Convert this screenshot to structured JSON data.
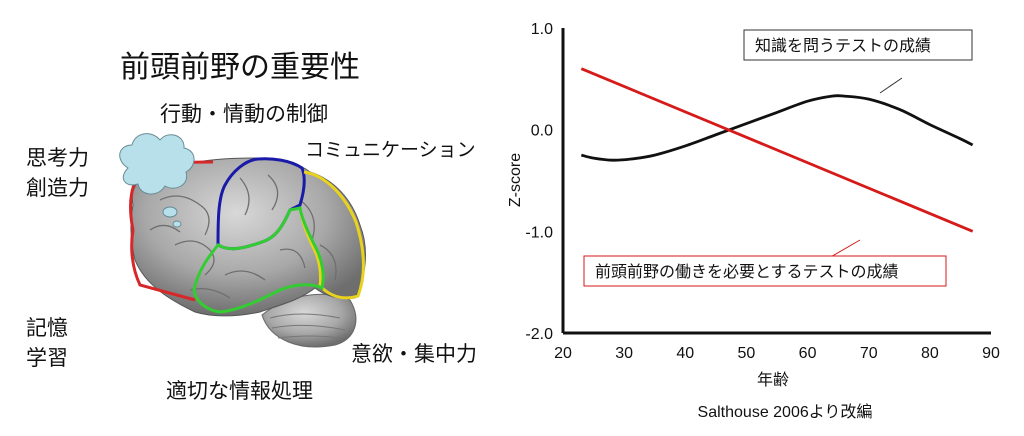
{
  "diagram": {
    "title": "前頭前野の重要性",
    "labels": {
      "behavior": "行動・情動の制御",
      "thinking": "思考力\n創造力",
      "communication": "コミュニケーション",
      "memory": "記憶\n学習",
      "motivation": "意欲・集中力",
      "processing": "適切な情報処理"
    },
    "region_colors": {
      "red": "#d62828",
      "blue": "#1a1aa8",
      "yellow": "#e8d21e",
      "green": "#33cc33"
    },
    "cloud_color": "#b8e0ea"
  },
  "chart_data": {
    "type": "line",
    "xlabel": "年齢",
    "ylabel": "Z-score",
    "xlim": [
      20,
      90
    ],
    "ylim": [
      -2.0,
      1.0
    ],
    "x_ticks": [
      20,
      30,
      40,
      50,
      60,
      70,
      80,
      90
    ],
    "y_ticks": [
      {
        "value": 1.0,
        "label": "1.0"
      },
      {
        "value": 0.0,
        "label": "0.0"
      },
      {
        "value": -1.0,
        "label": "-1.0"
      },
      {
        "value": -2.0,
        "label": "-2.0"
      }
    ],
    "grid": false,
    "series": [
      {
        "name": "知識を問うテストの成績",
        "color": "#111111",
        "x": [
          23,
          25,
          28,
          31,
          35,
          40,
          45,
          50,
          55,
          60,
          64,
          66,
          70,
          75,
          80,
          85,
          87
        ],
        "y": [
          -0.25,
          -0.28,
          -0.3,
          -0.29,
          -0.25,
          -0.16,
          -0.05,
          0.06,
          0.17,
          0.28,
          0.33,
          0.33,
          0.3,
          0.2,
          0.05,
          -0.09,
          -0.15
        ]
      },
      {
        "name": "前頭前野の働きを必要とするテストの成績",
        "color": "#d61a1a",
        "x": [
          23,
          87
        ],
        "y": [
          0.6,
          -1.0
        ]
      }
    ],
    "source": "Salthouse 2006より改編"
  }
}
